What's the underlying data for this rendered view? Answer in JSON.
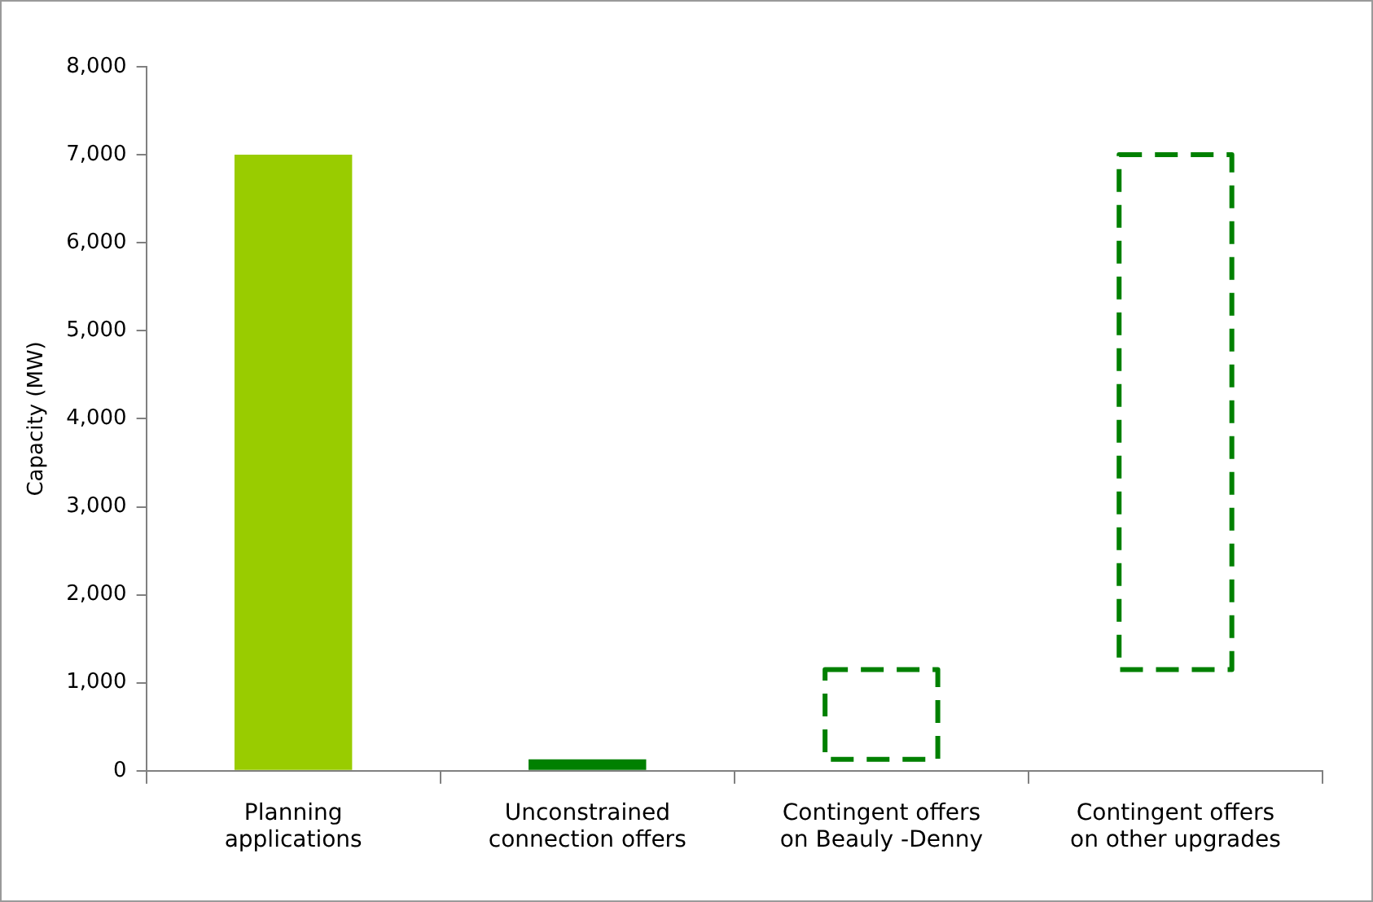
{
  "chart_data": {
    "type": "bar",
    "ylabel": "Capacity (MW)",
    "categories": [
      "Planning applications",
      "Unconstrained connection offers",
      "Contingent offers on Beauly -Denny",
      "Contingent offers on other upgrades"
    ],
    "series": [
      {
        "color": "#008000",
        "colors": [
          "#99cc00",
          "#008000",
          null,
          null
        ],
        "line_style": "dashed",
        "base": [
          0,
          0,
          130,
          1150
        ],
        "values": [
          7000,
          130,
          1020,
          5850
        ]
      }
    ],
    "ylim": [
      0,
      8000
    ],
    "yticks": [
      {
        "value": 0,
        "label": "0"
      },
      {
        "value": 1000,
        "label": "1,000"
      },
      {
        "value": 2000,
        "label": "2,000"
      },
      {
        "value": 3000,
        "label": "3,000"
      },
      {
        "value": 4000,
        "label": "4,000"
      },
      {
        "value": 5000,
        "label": "5,000"
      },
      {
        "value": 6000,
        "label": "6,000"
      },
      {
        "value": 7000,
        "label": "7,000"
      },
      {
        "value": 8000,
        "label": "8,000"
      }
    ],
    "grid": false,
    "legend": false
  }
}
